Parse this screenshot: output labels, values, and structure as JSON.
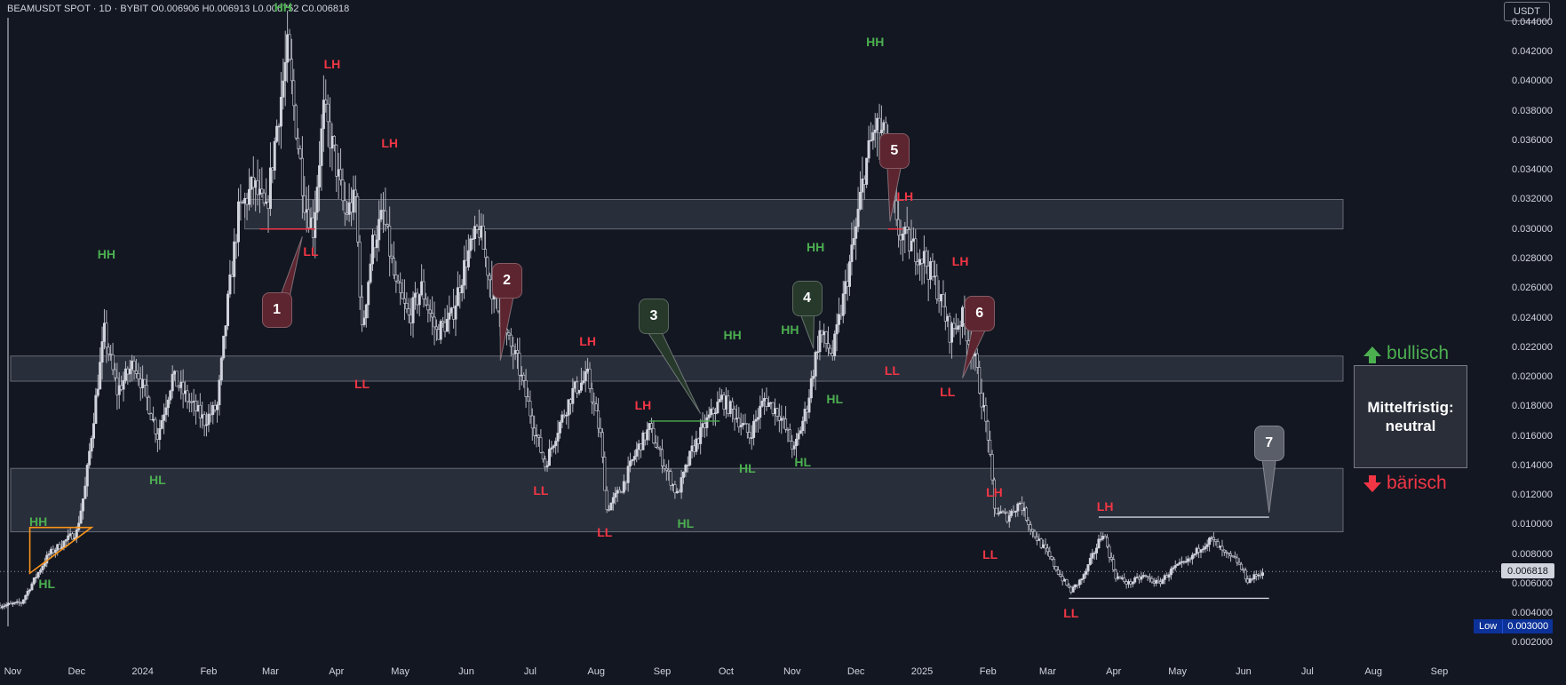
{
  "header": {
    "title": "BEAMUSDT SPOT · 1D · BYBIT  O0.006906  H0.006913  L0.006752  C0.006818",
    "currency_button": "USDT"
  },
  "price_axis": {
    "current_price_label": "0.006818",
    "low_label": "Low",
    "low_value": "0.003000"
  },
  "legend": {
    "bullish_label": "bullisch",
    "bearish_label": "bärisch",
    "status_text": "Mittelfristig: neutral",
    "bullish_color": "#4caf50",
    "bearish_color": "#f23645"
  },
  "colors": {
    "higher_label": "#4caf50",
    "lower_label": "#f23645",
    "triangle": "#f7931a",
    "zone_fill": "#3d4150",
    "bubble_red": "#5c2530",
    "bubble_green": "#26392b",
    "bubble_gray": "#5a5e69"
  },
  "chart_data": {
    "type": "candlestick",
    "y_axis": {
      "range": [
        0.001,
        0.0455
      ],
      "ticks": [
        "0.002000",
        "0.004000",
        "0.006000",
        "0.008000",
        "0.010000",
        "0.012000",
        "0.014000",
        "0.016000",
        "0.018000",
        "0.020000",
        "0.022000",
        "0.024000",
        "0.026000",
        "0.028000",
        "0.030000",
        "0.032000",
        "0.034000",
        "0.036000",
        "0.038000",
        "0.040000",
        "0.042000",
        "0.044000"
      ],
      "tick_values": [
        0.002,
        0.004,
        0.006,
        0.008,
        0.01,
        0.012,
        0.014,
        0.016,
        0.018,
        0.02,
        0.022,
        0.024,
        0.026,
        0.028,
        0.03,
        0.032,
        0.034,
        0.036,
        0.038,
        0.04,
        0.042,
        0.044
      ]
    },
    "x_axis": {
      "range": [
        "2023-10-26",
        "2025-09-30"
      ],
      "ticks": [
        {
          "date": "2023-11-01",
          "label": "Nov"
        },
        {
          "date": "2023-12-01",
          "label": "Dec"
        },
        {
          "date": "2024-01-01",
          "label": "2024"
        },
        {
          "date": "2024-02-01",
          "label": "Feb"
        },
        {
          "date": "2024-03-01",
          "label": "Mar"
        },
        {
          "date": "2024-04-01",
          "label": "Apr"
        },
        {
          "date": "2024-05-01",
          "label": "May"
        },
        {
          "date": "2024-06-01",
          "label": "Jun"
        },
        {
          "date": "2024-07-01",
          "label": "Jul"
        },
        {
          "date": "2024-08-01",
          "label": "Aug"
        },
        {
          "date": "2024-09-01",
          "label": "Sep"
        },
        {
          "date": "2024-10-01",
          "label": "Oct"
        },
        {
          "date": "2024-11-01",
          "label": "Nov"
        },
        {
          "date": "2024-12-01",
          "label": "Dec"
        },
        {
          "date": "2025-01-01",
          "label": "2025"
        },
        {
          "date": "2025-02-01",
          "label": "Feb"
        },
        {
          "date": "2025-03-01",
          "label": "Mar"
        },
        {
          "date": "2025-04-01",
          "label": "Apr"
        },
        {
          "date": "2025-05-01",
          "label": "May"
        },
        {
          "date": "2025-06-01",
          "label": "Jun"
        },
        {
          "date": "2025-07-01",
          "label": "Jul"
        },
        {
          "date": "2025-08-01",
          "label": "Aug"
        },
        {
          "date": "2025-09-01",
          "label": "Sep"
        }
      ]
    },
    "price_path": [
      [
        "2023-10-26",
        0.0045
      ],
      [
        "2023-11-05",
        0.0047
      ],
      [
        "2023-11-12",
        0.0065
      ],
      [
        "2023-11-18",
        0.008
      ],
      [
        "2023-11-25",
        0.0088
      ],
      [
        "2023-12-01",
        0.0095
      ],
      [
        "2023-12-05",
        0.0125
      ],
      [
        "2023-12-10",
        0.0185
      ],
      [
        "2023-12-14",
        0.023
      ],
      [
        "2023-12-20",
        0.019
      ],
      [
        "2023-12-28",
        0.021
      ],
      [
        "2024-01-03",
        0.0185
      ],
      [
        "2024-01-08",
        0.016
      ],
      [
        "2024-01-15",
        0.02
      ],
      [
        "2024-01-22",
        0.0185
      ],
      [
        "2024-01-30",
        0.017
      ],
      [
        "2024-02-05",
        0.018
      ],
      [
        "2024-02-10",
        0.025
      ],
      [
        "2024-02-15",
        0.031
      ],
      [
        "2024-02-22",
        0.033
      ],
      [
        "2024-02-28",
        0.031
      ],
      [
        "2024-03-04",
        0.037
      ],
      [
        "2024-03-09",
        0.042
      ],
      [
        "2024-03-13",
        0.037
      ],
      [
        "2024-03-17",
        0.032
      ],
      [
        "2024-03-21",
        0.03
      ],
      [
        "2024-03-26",
        0.038
      ],
      [
        "2024-03-31",
        0.035
      ],
      [
        "2024-04-05",
        0.031
      ],
      [
        "2024-04-10",
        0.032
      ],
      [
        "2024-04-13",
        0.023
      ],
      [
        "2024-04-18",
        0.029
      ],
      [
        "2024-04-23",
        0.031
      ],
      [
        "2024-04-29",
        0.026
      ],
      [
        "2024-05-05",
        0.024
      ],
      [
        "2024-05-11",
        0.026
      ],
      [
        "2024-05-18",
        0.023
      ],
      [
        "2024-05-25",
        0.024
      ],
      [
        "2024-06-01",
        0.028
      ],
      [
        "2024-06-07",
        0.03
      ],
      [
        "2024-06-13",
        0.026
      ],
      [
        "2024-06-19",
        0.023
      ],
      [
        "2024-06-25",
        0.021
      ],
      [
        "2024-07-02",
        0.017
      ],
      [
        "2024-07-08",
        0.014
      ],
      [
        "2024-07-14",
        0.0165
      ],
      [
        "2024-07-21",
        0.019
      ],
      [
        "2024-07-28",
        0.02
      ],
      [
        "2024-08-03",
        0.016
      ],
      [
        "2024-08-06",
        0.011
      ],
      [
        "2024-08-13",
        0.0125
      ],
      [
        "2024-08-20",
        0.015
      ],
      [
        "2024-08-26",
        0.0165
      ],
      [
        "2024-09-02",
        0.014
      ],
      [
        "2024-09-08",
        0.012
      ],
      [
        "2024-09-15",
        0.015
      ],
      [
        "2024-09-22",
        0.017
      ],
      [
        "2024-09-29",
        0.0185
      ],
      [
        "2024-10-05",
        0.0175
      ],
      [
        "2024-10-12",
        0.016
      ],
      [
        "2024-10-19",
        0.0185
      ],
      [
        "2024-10-26",
        0.0175
      ],
      [
        "2024-11-02",
        0.015
      ],
      [
        "2024-11-08",
        0.018
      ],
      [
        "2024-11-14",
        0.023
      ],
      [
        "2024-11-20",
        0.0215
      ],
      [
        "2024-11-26",
        0.026
      ],
      [
        "2024-12-01",
        0.03
      ],
      [
        "2024-12-05",
        0.034
      ],
      [
        "2024-12-10",
        0.037
      ],
      [
        "2024-12-15",
        0.036
      ],
      [
        "2024-12-20",
        0.03
      ],
      [
        "2024-12-26",
        0.029
      ],
      [
        "2025-01-02",
        0.028
      ],
      [
        "2025-01-08",
        0.026
      ],
      [
        "2025-01-14",
        0.023
      ],
      [
        "2025-01-20",
        0.024
      ],
      [
        "2025-01-26",
        0.021
      ],
      [
        "2025-02-01",
        0.016
      ],
      [
        "2025-02-04",
        0.011
      ],
      [
        "2025-02-10",
        0.0105
      ],
      [
        "2025-02-16",
        0.0115
      ],
      [
        "2025-02-22",
        0.0095
      ],
      [
        "2025-03-01",
        0.008
      ],
      [
        "2025-03-07",
        0.0065
      ],
      [
        "2025-03-12",
        0.0055
      ],
      [
        "2025-03-18",
        0.0065
      ],
      [
        "2025-03-24",
        0.0085
      ],
      [
        "2025-03-27",
        0.0095
      ],
      [
        "2025-04-02",
        0.0065
      ],
      [
        "2025-04-08",
        0.006
      ],
      [
        "2025-04-15",
        0.0065
      ],
      [
        "2025-04-22",
        0.006
      ],
      [
        "2025-04-29",
        0.007
      ],
      [
        "2025-05-06",
        0.0075
      ],
      [
        "2025-05-12",
        0.0085
      ],
      [
        "2025-05-17",
        0.009
      ],
      [
        "2025-05-23",
        0.008
      ],
      [
        "2025-05-29",
        0.0075
      ],
      [
        "2025-06-03",
        0.0062
      ],
      [
        "2025-06-10",
        0.0068
      ]
    ],
    "zones": [
      {
        "from": "2023-10-31",
        "to": "2025-09-30",
        "low": 0.0095,
        "high": 0.0138
      },
      {
        "from": "2023-10-31",
        "to": "2025-09-30",
        "low": 0.0197,
        "high": 0.0214
      },
      {
        "from": "2024-02-18",
        "to": "2025-09-30",
        "low": 0.03,
        "high": 0.032
      }
    ],
    "level_lines": [
      {
        "from": "2024-02-25",
        "to": "2024-03-22",
        "price": 0.03,
        "color": "#f23645"
      },
      {
        "from": "2024-12-16",
        "to": "2024-12-23",
        "price": 0.03,
        "color": "#f23645"
      },
      {
        "from": "2024-08-26",
        "to": "2024-09-28",
        "price": 0.017,
        "color": "#4caf50"
      },
      {
        "from": "2025-03-25",
        "to": "2025-06-13",
        "price": 0.0105,
        "color": "#d1d4dc"
      },
      {
        "from": "2025-03-11",
        "to": "2025-06-13",
        "price": 0.005,
        "color": "#d1d4dc"
      }
    ],
    "triangle": [
      [
        "2023-11-09",
        0.0098
      ],
      [
        "2023-11-09",
        0.0067
      ],
      [
        "2023-12-08",
        0.0098
      ]
    ],
    "current_price": 0.006818,
    "swing_labels": [
      {
        "text": "HH",
        "date": "2024-03-07",
        "price": 0.045,
        "trend": "up"
      },
      {
        "text": "LH",
        "date": "2024-03-30",
        "price": 0.0412,
        "trend": "down"
      },
      {
        "text": "LL",
        "date": "2024-03-20",
        "price": 0.0285,
        "trend": "down"
      },
      {
        "text": "LH",
        "date": "2024-04-26",
        "price": 0.0358,
        "trend": "down"
      },
      {
        "text": "HH",
        "date": "2023-12-15",
        "price": 0.0283,
        "trend": "up"
      },
      {
        "text": "HL",
        "date": "2024-01-08",
        "price": 0.013,
        "trend": "up"
      },
      {
        "text": "HH",
        "date": "2023-11-13",
        "price": 0.0102,
        "trend": "up"
      },
      {
        "text": "HL",
        "date": "2023-11-17",
        "price": 0.006,
        "trend": "up"
      },
      {
        "text": "LL",
        "date": "2024-04-13",
        "price": 0.0195,
        "trend": "down"
      },
      {
        "text": "LH",
        "date": "2024-07-28",
        "price": 0.0224,
        "trend": "down"
      },
      {
        "text": "LL",
        "date": "2024-07-06",
        "price": 0.0123,
        "trend": "down"
      },
      {
        "text": "LH",
        "date": "2024-08-23",
        "price": 0.0181,
        "trend": "down"
      },
      {
        "text": "LL",
        "date": "2024-08-05",
        "price": 0.0095,
        "trend": "down"
      },
      {
        "text": "HL",
        "date": "2024-09-12",
        "price": 0.0101,
        "trend": "up"
      },
      {
        "text": "HH",
        "date": "2024-10-04",
        "price": 0.0228,
        "trend": "up"
      },
      {
        "text": "HL",
        "date": "2024-10-11",
        "price": 0.0138,
        "trend": "up"
      },
      {
        "text": "HL",
        "date": "2024-11-06",
        "price": 0.0142,
        "trend": "up"
      },
      {
        "text": "HH",
        "date": "2024-10-31",
        "price": 0.0232,
        "trend": "up"
      },
      {
        "text": "HH",
        "date": "2024-11-12",
        "price": 0.0288,
        "trend": "up"
      },
      {
        "text": "HL",
        "date": "2024-11-21",
        "price": 0.0185,
        "trend": "up"
      },
      {
        "text": "HH",
        "date": "2024-12-10",
        "price": 0.0427,
        "trend": "up"
      },
      {
        "text": "LH",
        "date": "2024-12-24",
        "price": 0.0322,
        "trend": "down"
      },
      {
        "text": "LL",
        "date": "2024-12-18",
        "price": 0.0204,
        "trend": "down"
      },
      {
        "text": "LH",
        "date": "2025-01-19",
        "price": 0.0278,
        "trend": "down"
      },
      {
        "text": "LL",
        "date": "2025-01-13",
        "price": 0.019,
        "trend": "down"
      },
      {
        "text": "LH",
        "date": "2025-02-04",
        "price": 0.0122,
        "trend": "down"
      },
      {
        "text": "LL",
        "date": "2025-02-02",
        "price": 0.008,
        "trend": "down"
      },
      {
        "text": "LH",
        "date": "2025-03-28",
        "price": 0.0112,
        "trend": "down"
      },
      {
        "text": "LL",
        "date": "2025-03-12",
        "price": 0.004,
        "trend": "down"
      }
    ],
    "callouts": [
      {
        "number": "1",
        "date": "2024-03-04",
        "price": 0.0245,
        "anchor_date": "2024-03-16",
        "anchor_price": 0.0295,
        "style": "red"
      },
      {
        "number": "2",
        "date": "2024-06-20",
        "price": 0.0265,
        "anchor_date": "2024-06-17",
        "anchor_price": 0.0211,
        "style": "red"
      },
      {
        "number": "3",
        "date": "2024-08-28",
        "price": 0.0241,
        "anchor_date": "2024-09-19",
        "anchor_price": 0.0175,
        "style": "green"
      },
      {
        "number": "4",
        "date": "2024-11-08",
        "price": 0.0253,
        "anchor_date": "2024-11-11",
        "anchor_price": 0.0219,
        "style": "green"
      },
      {
        "number": "5",
        "date": "2024-12-19",
        "price": 0.0353,
        "anchor_date": "2024-12-17",
        "anchor_price": 0.0305,
        "style": "red"
      },
      {
        "number": "6",
        "date": "2025-01-28",
        "price": 0.0243,
        "anchor_date": "2025-01-20",
        "anchor_price": 0.0199,
        "style": "red"
      },
      {
        "number": "7",
        "date": "2025-06-13",
        "price": 0.0155,
        "anchor_date": "2025-06-13",
        "anchor_price": 0.0108,
        "style": "gray"
      }
    ]
  }
}
